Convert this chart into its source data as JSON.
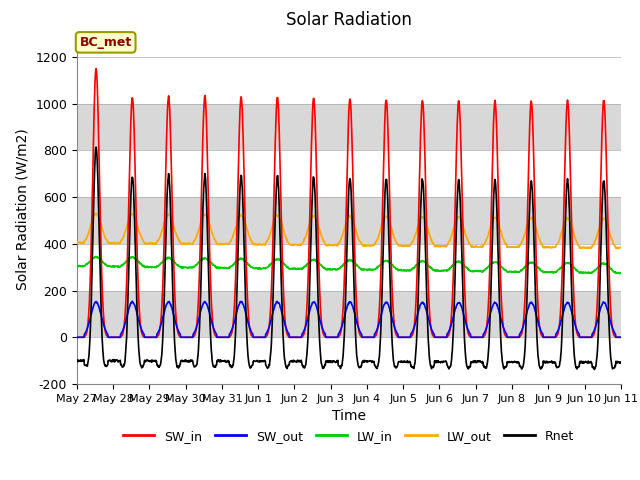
{
  "title": "Solar Radiation",
  "xlabel": "Time",
  "ylabel": "Solar Radiation (W/m2)",
  "ylim": [
    -200,
    1300
  ],
  "yticks": [
    -200,
    0,
    200,
    400,
    600,
    800,
    1000,
    1200
  ],
  "xtick_labels": [
    "May 27",
    "May 28",
    "May 29",
    "May 30",
    "May 31",
    "Jun 1",
    "Jun 2",
    "Jun 3",
    "Jun 4",
    "Jun 5",
    "Jun 6",
    "Jun 7",
    "Jun 8",
    "Jun 9",
    "Jun 10",
    "Jun 11"
  ],
  "series": {
    "SW_in": {
      "color": "#ff0000",
      "lw": 1.2
    },
    "SW_out": {
      "color": "#0000ff",
      "lw": 1.2
    },
    "LW_in": {
      "color": "#00cc00",
      "lw": 1.2
    },
    "LW_out": {
      "color": "#ffaa00",
      "lw": 1.2
    },
    "Rnet": {
      "color": "#000000",
      "lw": 1.2
    }
  },
  "annotation_text": "BC_met",
  "n_days": 15,
  "dt_hours": 0.25,
  "band_colors": [
    "#ffffff",
    "#d8d8d8"
  ],
  "fig_bg": "#ffffff"
}
